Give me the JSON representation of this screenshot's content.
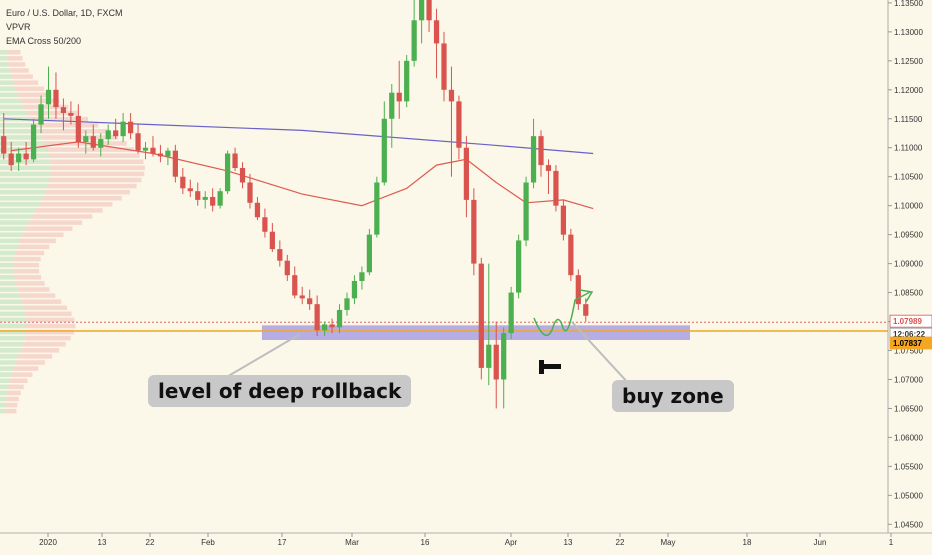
{
  "legend": {
    "symbol": "Euro / U.S. Dollar, 1D, FXCM",
    "indicator1": "VPVR",
    "indicator2": "EMA Cross 50/200"
  },
  "annotations": {
    "deep_rollback": "level of deep rollback",
    "buy_zone": "buy zone"
  },
  "colors": {
    "background": "#fbf7e9",
    "bull": "#4caf50",
    "bear": "#d9534f",
    "ema50": "#e05a4f",
    "ema200": "#6a62c9",
    "zone": "#9f96e0",
    "support_line": "#f5a623",
    "vp_green": "#cfe8c9",
    "vp_red": "#f4c9c0",
    "annotation_arrow": "#4caf50",
    "callout_bg": "#c8c8c8"
  },
  "price_badges": [
    {
      "value": "1.07989",
      "bg": "#ffffff",
      "fg": "#d9534f",
      "border": "#d9534f"
    },
    {
      "value": "12:06:22",
      "bg": "#ffffff",
      "fg": "#333333",
      "border": "#999999"
    },
    {
      "value": "1.07837",
      "bg": "#f5a623",
      "fg": "#000000",
      "border": "#f5a623"
    }
  ],
  "chart_data": {
    "type": "candlestick",
    "title": "Euro / U.S. Dollar, 1D, FXCM",
    "ylim": [
      1.0435,
      1.1355
    ],
    "y_ticks": [
      "1.13500",
      "1.13000",
      "1.12500",
      "1.12000",
      "1.11500",
      "1.11000",
      "1.10500",
      "1.10000",
      "1.09500",
      "1.09000",
      "1.08500",
      "1.08000",
      "1.07500",
      "1.07000",
      "1.06500",
      "1.06000",
      "1.05500",
      "1.05000",
      "1.04500"
    ],
    "x_tick_labels": [
      "2020",
      "13",
      "22",
      "Feb",
      "17",
      "Mar",
      "16",
      "Apr",
      "13",
      "22",
      "May",
      "18",
      "Jun",
      "1"
    ],
    "bars_visible": 119,
    "candles": [
      [
        1.112,
        1.116,
        1.108,
        1.109
      ],
      [
        1.109,
        1.111,
        1.106,
        1.107
      ],
      [
        1.1075,
        1.11,
        1.106,
        1.109
      ],
      [
        1.109,
        1.111,
        1.107,
        1.108
      ],
      [
        1.108,
        1.115,
        1.1075,
        1.114
      ],
      [
        1.114,
        1.119,
        1.1125,
        1.1175
      ],
      [
        1.1175,
        1.124,
        1.115,
        1.12
      ],
      [
        1.12,
        1.123,
        1.115,
        1.117
      ],
      [
        1.117,
        1.1185,
        1.113,
        1.116
      ],
      [
        1.116,
        1.118,
        1.114,
        1.1155
      ],
      [
        1.1155,
        1.1175,
        1.11,
        1.111
      ],
      [
        1.111,
        1.113,
        1.109,
        1.112
      ],
      [
        1.112,
        1.114,
        1.1095,
        1.11
      ],
      [
        1.11,
        1.1125,
        1.1085,
        1.1115
      ],
      [
        1.1115,
        1.114,
        1.1105,
        1.113
      ],
      [
        1.113,
        1.115,
        1.1115,
        1.112
      ],
      [
        1.112,
        1.116,
        1.111,
        1.1145
      ],
      [
        1.1145,
        1.116,
        1.1115,
        1.1125
      ],
      [
        1.1125,
        1.114,
        1.109,
        1.1095
      ],
      [
        1.1095,
        1.111,
        1.108,
        1.11
      ],
      [
        1.11,
        1.112,
        1.1085,
        1.109
      ],
      [
        1.109,
        1.1105,
        1.1075,
        1.1085
      ],
      [
        1.1085,
        1.11,
        1.107,
        1.1095
      ],
      [
        1.1095,
        1.1105,
        1.104,
        1.105
      ],
      [
        1.105,
        1.1065,
        1.102,
        1.103
      ],
      [
        1.103,
        1.1045,
        1.1015,
        1.1025
      ],
      [
        1.1025,
        1.104,
        1.1,
        1.101
      ],
      [
        1.101,
        1.1025,
        1.0995,
        1.1015
      ],
      [
        1.1015,
        1.103,
        1.099,
        1.1
      ],
      [
        1.1,
        1.103,
        1.0995,
        1.1025
      ],
      [
        1.1025,
        1.1095,
        1.102,
        1.109
      ],
      [
        1.109,
        1.11,
        1.106,
        1.1065
      ],
      [
        1.1065,
        1.1075,
        1.103,
        1.104
      ],
      [
        1.104,
        1.1055,
        1.0995,
        1.1005
      ],
      [
        1.1005,
        1.1015,
        1.0975,
        1.098
      ],
      [
        1.098,
        1.0995,
        1.0945,
        1.0955
      ],
      [
        1.0955,
        1.097,
        1.092,
        1.0925
      ],
      [
        1.0925,
        1.094,
        1.0895,
        1.0905
      ],
      [
        1.0905,
        1.0915,
        1.087,
        1.088
      ],
      [
        1.088,
        1.0895,
        1.084,
        1.0845
      ],
      [
        1.0845,
        1.086,
        1.083,
        1.084
      ],
      [
        1.084,
        1.0855,
        1.082,
        1.083
      ],
      [
        1.083,
        1.0845,
        1.0775,
        1.0785
      ],
      [
        1.0785,
        1.08,
        1.0775,
        1.0795
      ],
      [
        1.0795,
        1.0805,
        1.078,
        1.079
      ],
      [
        1.079,
        1.083,
        1.078,
        1.082
      ],
      [
        1.082,
        1.085,
        1.081,
        1.084
      ],
      [
        1.084,
        1.088,
        1.083,
        1.087
      ],
      [
        1.087,
        1.0895,
        1.0855,
        1.0885
      ],
      [
        1.0885,
        1.096,
        1.088,
        1.095
      ],
      [
        1.095,
        1.105,
        1.0945,
        1.104
      ],
      [
        1.104,
        1.118,
        1.1035,
        1.115
      ],
      [
        1.115,
        1.121,
        1.11,
        1.1195
      ],
      [
        1.1195,
        1.125,
        1.115,
        1.118
      ],
      [
        1.118,
        1.126,
        1.117,
        1.125
      ],
      [
        1.125,
        1.138,
        1.124,
        1.132
      ],
      [
        1.132,
        1.14,
        1.128,
        1.138
      ],
      [
        1.138,
        1.142,
        1.13,
        1.132
      ],
      [
        1.132,
        1.134,
        1.122,
        1.128
      ],
      [
        1.128,
        1.13,
        1.118,
        1.12
      ],
      [
        1.12,
        1.124,
        1.105,
        1.118
      ],
      [
        1.118,
        1.119,
        1.108,
        1.11
      ],
      [
        1.11,
        1.112,
        1.098,
        1.101
      ],
      [
        1.101,
        1.103,
        1.088,
        1.09
      ],
      [
        1.09,
        1.091,
        1.07,
        1.072
      ],
      [
        1.072,
        1.09,
        1.069,
        1.076
      ],
      [
        1.076,
        1.08,
        1.065,
        1.07
      ],
      [
        1.07,
        1.079,
        1.065,
        1.078
      ],
      [
        1.078,
        1.086,
        1.077,
        1.085
      ],
      [
        1.085,
        1.095,
        1.084,
        1.094
      ],
      [
        1.094,
        1.105,
        1.093,
        1.104
      ],
      [
        1.104,
        1.115,
        1.103,
        1.112
      ],
      [
        1.112,
        1.113,
        1.105,
        1.107
      ],
      [
        1.107,
        1.108,
        1.102,
        1.106
      ],
      [
        1.106,
        1.107,
        1.099,
        1.1
      ],
      [
        1.1,
        1.101,
        1.094,
        1.095
      ],
      [
        1.095,
        1.096,
        1.087,
        1.088
      ],
      [
        1.088,
        1.089,
        1.082,
        1.083
      ],
      [
        1.083,
        1.084,
        1.08,
        1.081
      ]
    ],
    "ema50": [
      [
        1,
        1.1095
      ],
      [
        10,
        1.111
      ],
      [
        20,
        1.109
      ],
      [
        30,
        1.106
      ],
      [
        40,
        1.102
      ],
      [
        48,
        1.1
      ],
      [
        54,
        1.103
      ],
      [
        58,
        1.107
      ],
      [
        62,
        1.108
      ],
      [
        66,
        1.104
      ],
      [
        70,
        1.1005
      ],
      [
        75,
        1.101
      ],
      [
        79,
        1.0995
      ]
    ],
    "ema200": [
      [
        0,
        1.115
      ],
      [
        20,
        1.114
      ],
      [
        40,
        1.113
      ],
      [
        55,
        1.1115
      ],
      [
        65,
        1.1105
      ],
      [
        79,
        1.109
      ]
    ],
    "zone": {
      "low": 1.0775,
      "high": 1.079,
      "from_bar": 35
    },
    "support_level": 1.07837,
    "resistance_level": 1.07989,
    "volume_profile_levels": 60
  }
}
